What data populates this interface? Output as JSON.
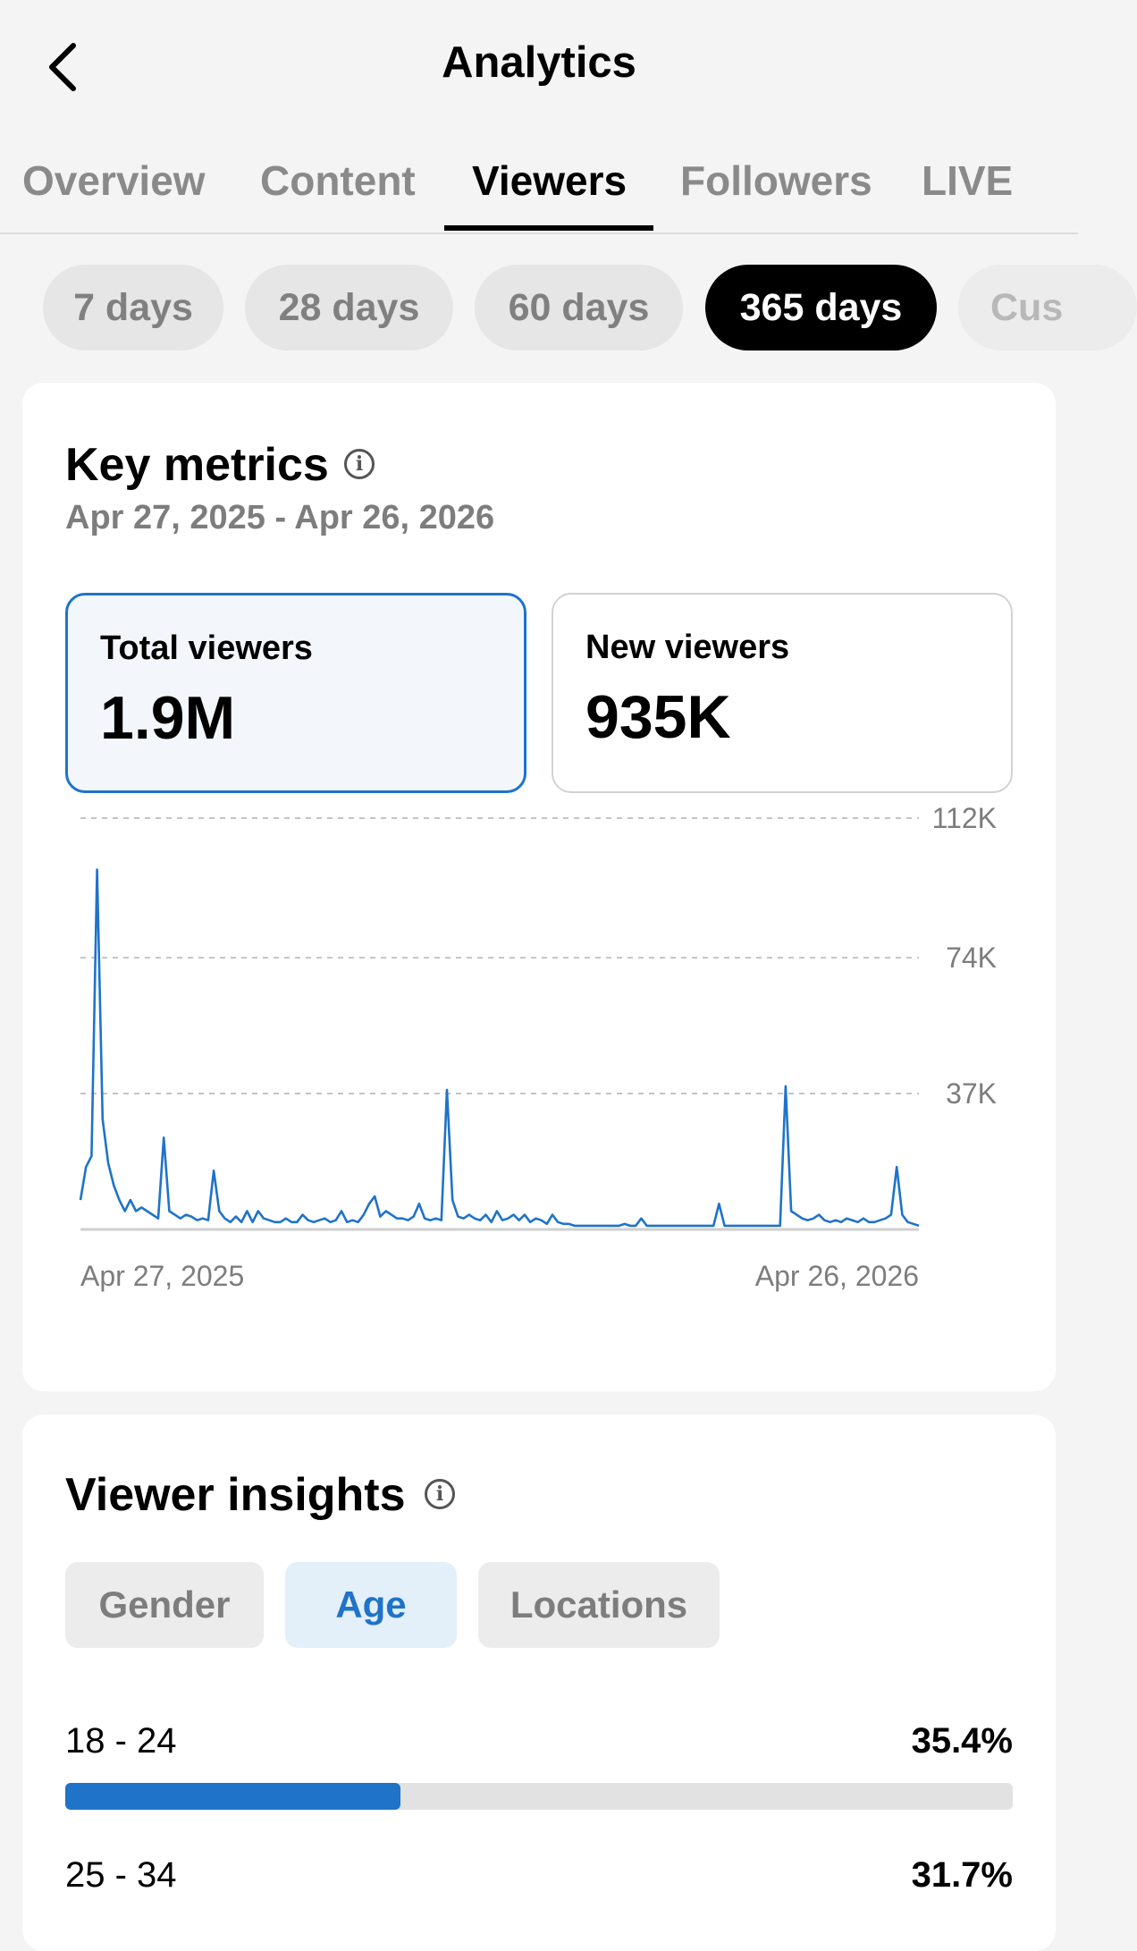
{
  "header": {
    "title": "Analytics",
    "back_icon": "chevron-left-icon"
  },
  "tabs": [
    {
      "label": "Overview",
      "active": false
    },
    {
      "label": "Content",
      "active": false
    },
    {
      "label": "Viewers",
      "active": true
    },
    {
      "label": "Followers",
      "active": false
    },
    {
      "label": "LIVE",
      "active": false
    }
  ],
  "ranges": [
    {
      "label": "7 days",
      "active": false
    },
    {
      "label": "28 days",
      "active": false
    },
    {
      "label": "60 days",
      "active": false
    },
    {
      "label": "365 days",
      "active": true
    },
    {
      "label": "Cus",
      "active": false
    }
  ],
  "key_metrics": {
    "title": "Key metrics",
    "info_icon": "info-icon",
    "date_range": "Apr 27, 2025 - Apr 26, 2026",
    "metrics": [
      {
        "label": "Total viewers",
        "value": "1.9M",
        "selected": true
      },
      {
        "label": "New viewers",
        "value": "935K",
        "selected": false
      }
    ]
  },
  "chart_data": {
    "type": "line",
    "title": "",
    "xlabel": "",
    "ylabel": "",
    "x_tick_labels": [
      "Apr 27, 2025",
      "Apr 26, 2026"
    ],
    "y_tick_labels": [
      "37K",
      "74K",
      "112K"
    ],
    "yticks": [
      37000,
      74000,
      112000
    ],
    "ylim": [
      0,
      112000
    ],
    "grid": "dashed horizontal",
    "series": [
      {
        "name": "",
        "color": "#1f73c9",
        "values": [
          8000,
          17000,
          20000,
          98000,
          30000,
          18000,
          12000,
          8000,
          5000,
          8000,
          5000,
          6000,
          5000,
          4000,
          3000,
          25000,
          5000,
          4000,
          3000,
          4000,
          3500,
          2500,
          3000,
          2500,
          16000,
          5000,
          3000,
          2000,
          3500,
          2000,
          5000,
          2000,
          5000,
          3000,
          2500,
          2000,
          2000,
          3000,
          2000,
          2000,
          4000,
          2500,
          2000,
          2500,
          3000,
          2000,
          2500,
          5000,
          2000,
          2500,
          2000,
          4000,
          7000,
          9000,
          3500,
          5000,
          4000,
          3000,
          3000,
          2500,
          3500,
          7000,
          3000,
          2500,
          3000,
          2500,
          38000,
          8000,
          3500,
          3000,
          4000,
          3000,
          2500,
          4000,
          2000,
          5000,
          2500,
          3000,
          4000,
          2500,
          4000,
          2000,
          3000,
          2500,
          1500,
          4000,
          2000,
          1500,
          1500,
          1000,
          1000,
          1000,
          1000,
          1000,
          1000,
          1000,
          1000,
          1000,
          1500,
          1000,
          1000,
          3000,
          1000,
          1000,
          1000,
          1000,
          1000,
          1000,
          1000,
          1000,
          1000,
          1000,
          1000,
          1000,
          1000,
          7000,
          1000,
          1000,
          1000,
          1000,
          1000,
          1000,
          1000,
          1000,
          1000,
          1000,
          1000,
          39000,
          5000,
          4000,
          3000,
          2500,
          3000,
          4000,
          2500,
          2000,
          2500,
          2000,
          3000,
          2500,
          2000,
          3000,
          2000,
          2000,
          2500,
          3000,
          4000,
          17000,
          4000,
          2000,
          1500,
          1000
        ]
      }
    ]
  },
  "viewer_insights": {
    "title": "Viewer insights",
    "info_icon": "info-icon",
    "segments": [
      {
        "label": "Gender",
        "active": false
      },
      {
        "label": "Age",
        "active": true
      },
      {
        "label": "Locations",
        "active": false
      }
    ],
    "age_groups": [
      {
        "label": "18 - 24",
        "pct_text": "35.4%",
        "pct": 35.4
      },
      {
        "label": "25 - 34",
        "pct_text": "31.7%",
        "pct": 31.7
      }
    ]
  },
  "colors": {
    "accent": "#1f73c9",
    "active_pill": "#000000"
  }
}
